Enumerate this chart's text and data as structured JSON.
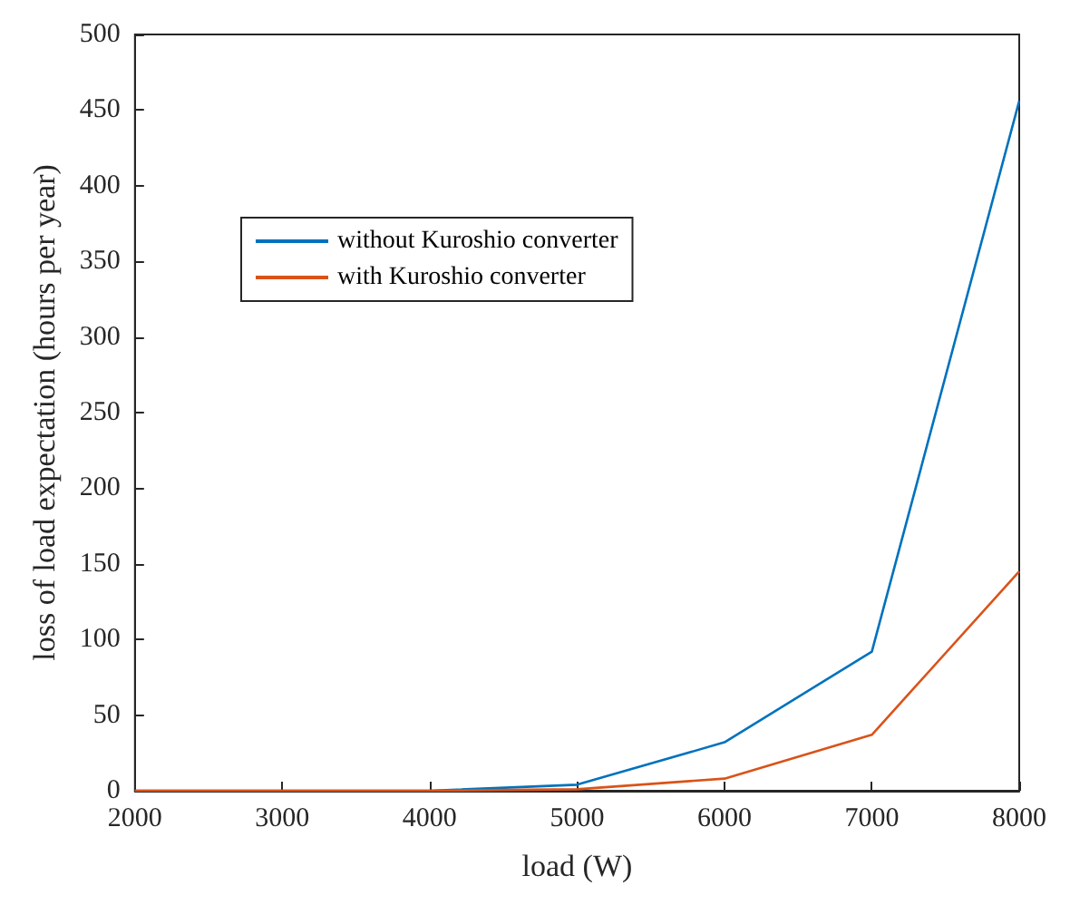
{
  "chart_data": {
    "type": "line",
    "xlabel": "load (W)",
    "ylabel": "loss of load expectation (hours per year)",
    "x": [
      2000,
      3000,
      4000,
      5000,
      6000,
      7000,
      8000
    ],
    "series": [
      {
        "name": "without Kuroshio converter",
        "color": "#0072bd",
        "values": [
          0,
          0,
          0,
          4,
          32,
          92,
          456
        ]
      },
      {
        "name": "with Kuroshio converter",
        "color": "#d95319",
        "values": [
          0,
          0,
          0,
          1,
          8,
          37,
          145
        ]
      }
    ],
    "xlim": [
      2000,
      8000
    ],
    "xticks": [
      2000,
      3000,
      4000,
      5000,
      6000,
      7000,
      8000
    ],
    "ylim": [
      0,
      500
    ],
    "yticks": [
      0,
      50,
      100,
      150,
      200,
      250,
      300,
      350,
      400,
      450,
      500
    ],
    "grid": false,
    "legend": "top left",
    "marker": "none",
    "line_style": "solid"
  }
}
